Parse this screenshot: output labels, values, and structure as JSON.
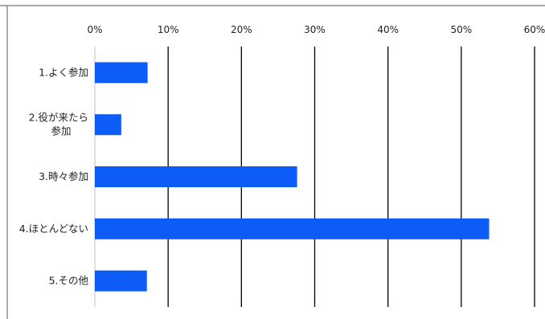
{
  "chart_data": {
    "type": "bar",
    "orientation": "horizontal",
    "categories": [
      [
        "1.よく参加"
      ],
      [
        "2.役が来たら",
        "参加"
      ],
      [
        "3.時々参加"
      ],
      [
        "4.ほとんどない"
      ],
      [
        "5.その他"
      ]
    ],
    "values": [
      7.2,
      3.6,
      27.6,
      53.8,
      7.1
    ],
    "xlim": [
      0,
      60
    ],
    "xticks": [
      "0%",
      "10%",
      "20%",
      "30%",
      "40%",
      "50%",
      "60%"
    ],
    "grid": true,
    "legend": "none",
    "bar_color": "#0d5cf7"
  }
}
